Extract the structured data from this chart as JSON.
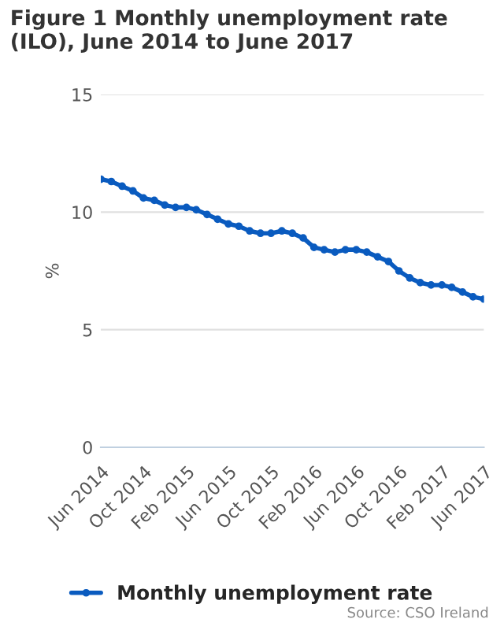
{
  "chart_data": {
    "type": "line",
    "title": "Figure 1 Monthly unemployment rate (ILO), June 2014 to June 2017",
    "ylabel": "%",
    "x": [
      "2014-06",
      "2014-07",
      "2014-08",
      "2014-09",
      "2014-10",
      "2014-11",
      "2014-12",
      "2015-01",
      "2015-02",
      "2015-03",
      "2015-04",
      "2015-05",
      "2015-06",
      "2015-07",
      "2015-08",
      "2015-09",
      "2015-10",
      "2015-11",
      "2015-12",
      "2016-01",
      "2016-02",
      "2016-03",
      "2016-04",
      "2016-05",
      "2016-06",
      "2016-07",
      "2016-08",
      "2016-09",
      "2016-10",
      "2016-11",
      "2016-12",
      "2017-01",
      "2017-02",
      "2017-03",
      "2017-04",
      "2017-05",
      "2017-06"
    ],
    "series": [
      {
        "name": "Monthly unemployment rate",
        "color": "#0a5bbf",
        "values": [
          11.4,
          11.3,
          11.1,
          10.9,
          10.6,
          10.5,
          10.3,
          10.2,
          10.2,
          10.1,
          9.9,
          9.7,
          9.5,
          9.4,
          9.2,
          9.1,
          9.1,
          9.2,
          9.1,
          8.9,
          8.5,
          8.4,
          8.3,
          8.4,
          8.4,
          8.3,
          8.1,
          7.9,
          7.5,
          7.2,
          7.0,
          6.9,
          6.9,
          6.8,
          6.6,
          6.4,
          6.3
        ]
      }
    ],
    "xlim": [
      "2014-06",
      "2017-06"
    ],
    "xticks": [
      {
        "value": "2014-06",
        "label": "Jun 2014"
      },
      {
        "value": "2014-10",
        "label": "Oct 2014"
      },
      {
        "value": "2015-02",
        "label": "Feb 2015"
      },
      {
        "value": "2015-06",
        "label": "Jun 2015"
      },
      {
        "value": "2015-10",
        "label": "Oct 2015"
      },
      {
        "value": "2016-02",
        "label": "Feb 2016"
      },
      {
        "value": "2016-06",
        "label": "Jun 2016"
      },
      {
        "value": "2016-10",
        "label": "Oct 2016"
      },
      {
        "value": "2017-02",
        "label": "Feb 2017"
      },
      {
        "value": "2017-06",
        "label": "Jun 2017"
      }
    ],
    "ylim": [
      0,
      15
    ],
    "yticks": [
      0,
      5,
      10,
      15
    ],
    "grid": "y",
    "marker": "circle",
    "line_style": "solid",
    "legend": "bottom",
    "annotations": [
      "Source: CSO Ireland"
    ]
  }
}
